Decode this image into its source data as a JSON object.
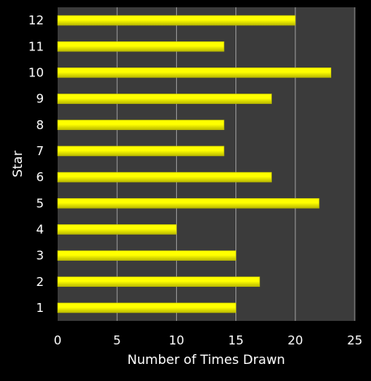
{
  "chart_data": {
    "type": "bar",
    "orientation": "horizontal",
    "categories": [
      "1",
      "2",
      "3",
      "4",
      "5",
      "6",
      "7",
      "8",
      "9",
      "10",
      "11",
      "12"
    ],
    "values": [
      15,
      17,
      15,
      10,
      22,
      18,
      14,
      14,
      18,
      23,
      14,
      20
    ],
    "xlabel": "Number of Times Drawn",
    "ylabel": "Star",
    "xlim": [
      0,
      25
    ],
    "xticks": [
      "0",
      "5",
      "10",
      "15",
      "20",
      "25"
    ],
    "grid": true,
    "legend": "none",
    "colors": {
      "background": "#000000",
      "plot_background": "#3b3b3b",
      "bar_fill": "#ffff00",
      "bar_shade": "#b8b800",
      "grid": "#9a9a9a",
      "text": "#ffffff"
    }
  }
}
